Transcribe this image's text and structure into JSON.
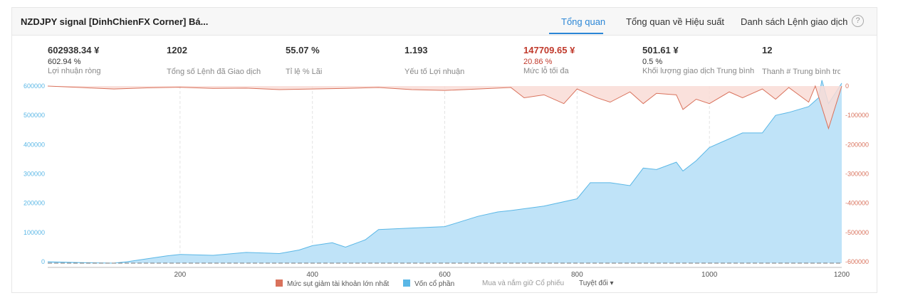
{
  "header": {
    "title": "NZDJPY signal [DinhChienFX Corner] Bá...",
    "tabs": [
      "Tổng quan",
      "Tổng quan về Hiệu suất",
      "Danh sách Lệnh giao dịch"
    ],
    "help": "?"
  },
  "stats": [
    {
      "value": "602938.34 ¥",
      "sub": "602.94 %",
      "label": "Lợi nhuận ròng"
    },
    {
      "value": "1202",
      "sub": "",
      "label": "Tổng số Lệnh đã Giao dịch"
    },
    {
      "value": "55.07 %",
      "sub": "",
      "label": "Tỉ lệ % Lãi"
    },
    {
      "value": "1.193",
      "sub": "",
      "label": "Yếu tố Lợi nhuận"
    },
    {
      "value": "147709.65 ¥",
      "sub": "20.86 %",
      "label": "Mức lỗ tối đa"
    },
    {
      "value": "501.61 ¥",
      "sub": "0.5 %",
      "label": "Khối lượng giao dịch Trung bình"
    },
    {
      "value": "12",
      "sub": "",
      "label": "Thanh # Trung bình tro"
    }
  ],
  "legend": {
    "drawdown": "Mức sụt giảm tài khoản lớn nhất",
    "equity": "Vốn cổ phần",
    "buyhold": "Mua và nắm giữ Cổ phiếu",
    "mode": "Tuyệt đối"
  },
  "colors": {
    "equity_fill": "#bfe3f8",
    "equity_line": "#5ab7e6",
    "drawdown_fill": "#f9dcd6",
    "drawdown_line": "#d9725c",
    "accent": "#2b86d6"
  },
  "chart_data": {
    "type": "area",
    "xlabel": "",
    "ylabel": "",
    "xlim": [
      0,
      1200
    ],
    "x_ticks": [
      "200",
      "400",
      "600",
      "800",
      "1000",
      "1200"
    ],
    "y_left_ticks": [
      "0",
      "100000",
      "200000",
      "300000",
      "400000",
      "500000",
      "600000"
    ],
    "y_right_ticks": [
      "0",
      "-100000",
      "-200000",
      "-300000",
      "-400000",
      "-500000",
      "-600000"
    ],
    "ylim_left": [
      0,
      600000
    ],
    "ylim_right": [
      -600000,
      0
    ],
    "grid": "vertical dashed",
    "series": [
      {
        "name": "Vốn cổ phần",
        "axis": "left",
        "x": [
          0,
          50,
          100,
          120,
          150,
          180,
          200,
          250,
          300,
          350,
          380,
          400,
          430,
          450,
          480,
          500,
          550,
          600,
          650,
          680,
          700,
          750,
          800,
          820,
          850,
          880,
          900,
          920,
          950,
          960,
          980,
          1000,
          1050,
          1080,
          1100,
          1120,
          1150,
          1165,
          1170,
          1180,
          1200
        ],
        "y": [
          0,
          -3000,
          -5000,
          0,
          10000,
          20000,
          25000,
          22000,
          32000,
          28000,
          40000,
          55000,
          65000,
          50000,
          75000,
          110000,
          115000,
          120000,
          155000,
          170000,
          175000,
          190000,
          215000,
          270000,
          270000,
          260000,
          320000,
          315000,
          340000,
          310000,
          345000,
          390000,
          440000,
          440000,
          500000,
          510000,
          530000,
          560000,
          620000,
          540000,
          610000
        ]
      },
      {
        "name": "Mức sụt giảm tài khoản lớn nhất",
        "axis": "right",
        "x": [
          0,
          50,
          100,
          150,
          200,
          250,
          300,
          350,
          400,
          450,
          500,
          550,
          600,
          650,
          700,
          720,
          750,
          780,
          800,
          830,
          850,
          880,
          900,
          920,
          950,
          960,
          980,
          1000,
          1030,
          1050,
          1080,
          1100,
          1120,
          1150,
          1160,
          1180,
          1200
        ],
        "y": [
          0,
          -5000,
          -10000,
          -6000,
          -4000,
          -8000,
          -7000,
          -12000,
          -10000,
          -8000,
          -5000,
          -12000,
          -15000,
          -10000,
          -5000,
          -40000,
          -30000,
          -60000,
          -10000,
          -40000,
          -55000,
          -20000,
          -60000,
          -25000,
          -30000,
          -80000,
          -45000,
          -60000,
          -20000,
          -40000,
          -10000,
          -45000,
          -5000,
          -55000,
          0,
          -145000,
          0
        ]
      }
    ]
  }
}
